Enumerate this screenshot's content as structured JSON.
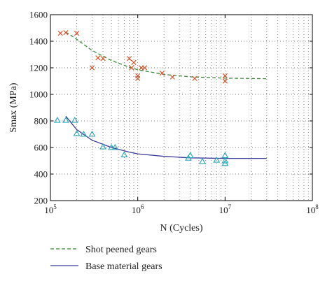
{
  "chart_data": {
    "type": "scatter",
    "title": "",
    "xlabel": "N (Cycles)",
    "ylabel": "Smax (MPa)",
    "xscale": "log",
    "xlim": [
      100000,
      100000000
    ],
    "ylim": [
      200,
      1600
    ],
    "x_ticks": [
      100000,
      1000000,
      10000000,
      100000000
    ],
    "x_tick_labels": [
      {
        "base": "10",
        "exp": "5"
      },
      {
        "base": "10",
        "exp": "6"
      },
      {
        "base": "10",
        "exp": "7"
      },
      {
        "base": "10",
        "exp": "8"
      }
    ],
    "y_ticks": [
      200,
      400,
      600,
      800,
      1000,
      1200,
      1400,
      1600
    ],
    "grid": "dotted",
    "legend_position": "below plot",
    "series": [
      {
        "name": "Shot peened gears",
        "kind": "fit-curve",
        "line_style": "dashed",
        "color": "#3a8a3a",
        "x": [
          150000,
          200000,
          300000,
          500000,
          800000,
          1000000,
          2000000,
          4000000,
          10000000,
          30000000
        ],
        "y": [
          1470,
          1415,
          1330,
          1255,
          1205,
          1185,
          1150,
          1132,
          1122,
          1118
        ]
      },
      {
        "name": "Base material gears",
        "kind": "fit-curve",
        "line_style": "solid",
        "color": "#3b3b99",
        "x": [
          150000,
          200000,
          300000,
          500000,
          800000,
          1000000,
          2000000,
          4000000,
          10000000,
          30000000
        ],
        "y": [
          835,
          735,
          655,
          600,
          565,
          552,
          533,
          522,
          518,
          518
        ]
      },
      {
        "name": "",
        "kind": "points",
        "marker": "x",
        "color": "#d9542b",
        "x": [
          130000,
          150000,
          200000,
          300000,
          350000,
          400000,
          800000,
          850000,
          900000,
          1000000,
          1000000,
          1100000,
          1200000,
          1900000,
          2500000,
          4500000,
          10000000,
          10000000
        ],
        "y": [
          1460,
          1465,
          1460,
          1200,
          1275,
          1270,
          1270,
          1200,
          1240,
          1140,
          1120,
          1200,
          1200,
          1160,
          1130,
          1120,
          1140,
          1100
        ]
      },
      {
        "name": "",
        "kind": "points",
        "marker": "triangle",
        "color": "#2aa6b5",
        "x": [
          120000,
          150000,
          190000,
          200000,
          240000,
          300000,
          400000,
          500000,
          550000,
          700000,
          3800000,
          4000000,
          5500000,
          8000000,
          10000000,
          10000000,
          10000000
        ],
        "y": [
          805,
          805,
          805,
          705,
          700,
          700,
          605,
          600,
          600,
          545,
          520,
          540,
          495,
          505,
          540,
          500,
          480
        ]
      }
    ]
  }
}
